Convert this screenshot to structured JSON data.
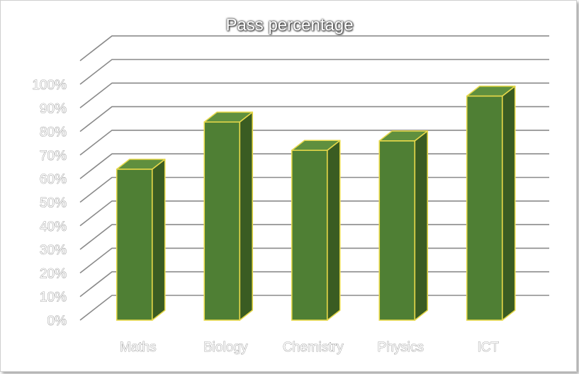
{
  "chart_data": {
    "type": "bar",
    "title": "Pass percentage",
    "categories": [
      "Maths",
      "Biology",
      "Chemistry",
      "Physics",
      "ICT"
    ],
    "values": [
      64,
      84,
      72,
      76,
      95
    ],
    "ylim": [
      0,
      100
    ],
    "yticks": [
      "0%",
      "10%",
      "20%",
      "30%",
      "40%",
      "50%",
      "60%",
      "70%",
      "80%",
      "90%",
      "100%"
    ],
    "grid": true,
    "legend": "none",
    "colors": {
      "bar_front": "#4f7f34",
      "bar_side": "#3a5c22",
      "bar_top": "#5f8f3e",
      "bar_outline": "#e6d84a",
      "gridline": "#8a8a8a"
    }
  }
}
